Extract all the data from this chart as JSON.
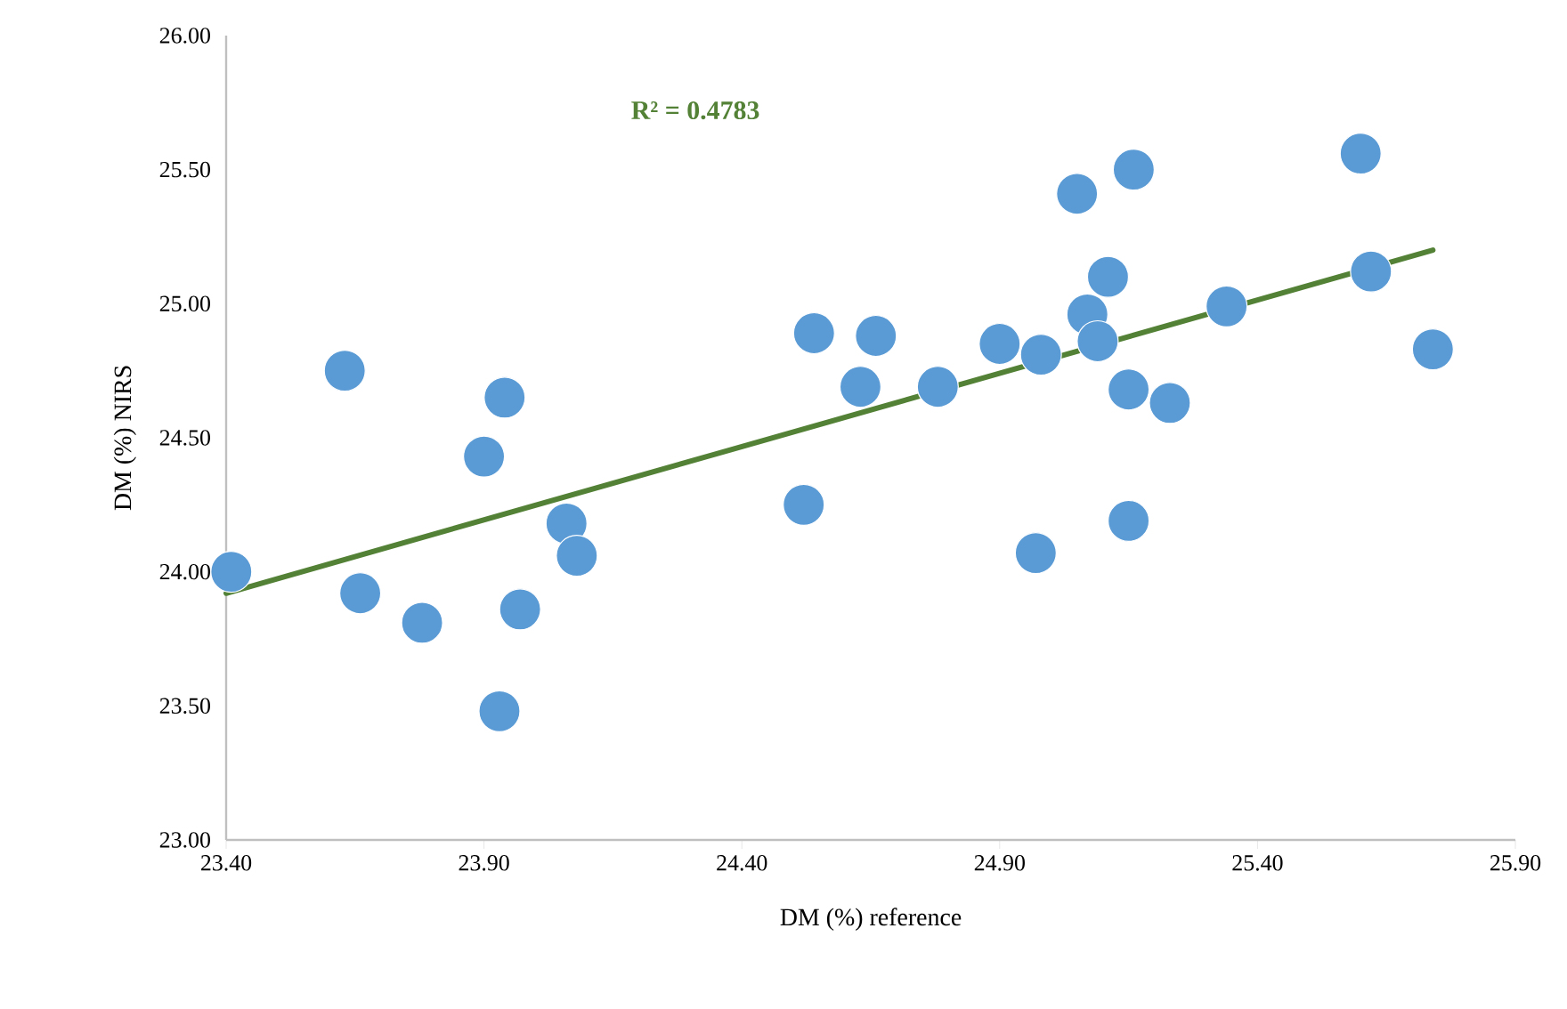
{
  "chart_data": {
    "type": "scatter",
    "xlabel": "DM (%) reference",
    "ylabel": "DM (%) NIRS",
    "annotations": [
      "R² = 0.4783"
    ],
    "xlim": [
      23.4,
      25.9
    ],
    "xticks": [
      {
        "value": 23.4,
        "label": "23.40"
      },
      {
        "value": 23.9,
        "label": "23.90"
      },
      {
        "value": 24.4,
        "label": "24.40"
      },
      {
        "value": 24.9,
        "label": "24.90"
      },
      {
        "value": 25.4,
        "label": "25.40"
      },
      {
        "value": 25.9,
        "label": "25.90"
      }
    ],
    "ylim": [
      23,
      26
    ],
    "yticks": [
      {
        "value": 23,
        "label": "23.00"
      },
      {
        "value": 23.5,
        "label": "23.50"
      },
      {
        "value": 24,
        "label": "24.00"
      },
      {
        "value": 24.5,
        "label": "24.50"
      },
      {
        "value": 25,
        "label": "25.00"
      },
      {
        "value": 25.5,
        "label": "25.50"
      },
      {
        "value": 26,
        "label": "26.00"
      }
    ],
    "grid": false,
    "series": [
      {
        "marker": "circle",
        "color": "#5b9bd5",
        "x": [
          23.41,
          23.63,
          23.66,
          23.78,
          23.9,
          23.94,
          23.93,
          23.97,
          24.06,
          24.08,
          24.52,
          24.54,
          24.63,
          24.66,
          24.78,
          24.9,
          24.98,
          24.97,
          25.05,
          25.16,
          25.11,
          25.07,
          25.09,
          25.15,
          25.15,
          25.23,
          25.34,
          25.6,
          25.62,
          25.74
        ],
        "values": [
          24.0,
          24.75,
          23.92,
          23.81,
          24.43,
          24.65,
          23.48,
          23.86,
          24.18,
          24.06,
          24.25,
          24.89,
          24.69,
          24.88,
          24.69,
          24.85,
          24.81,
          24.07,
          25.41,
          25.5,
          25.1,
          24.96,
          24.86,
          24.68,
          24.19,
          24.63,
          24.99,
          25.56,
          25.12,
          24.83
        ]
      },
      {
        "type": "line",
        "color": "#538135",
        "x": [
          23.4,
          25.74
        ],
        "values": [
          23.92,
          25.2
        ]
      }
    ]
  }
}
